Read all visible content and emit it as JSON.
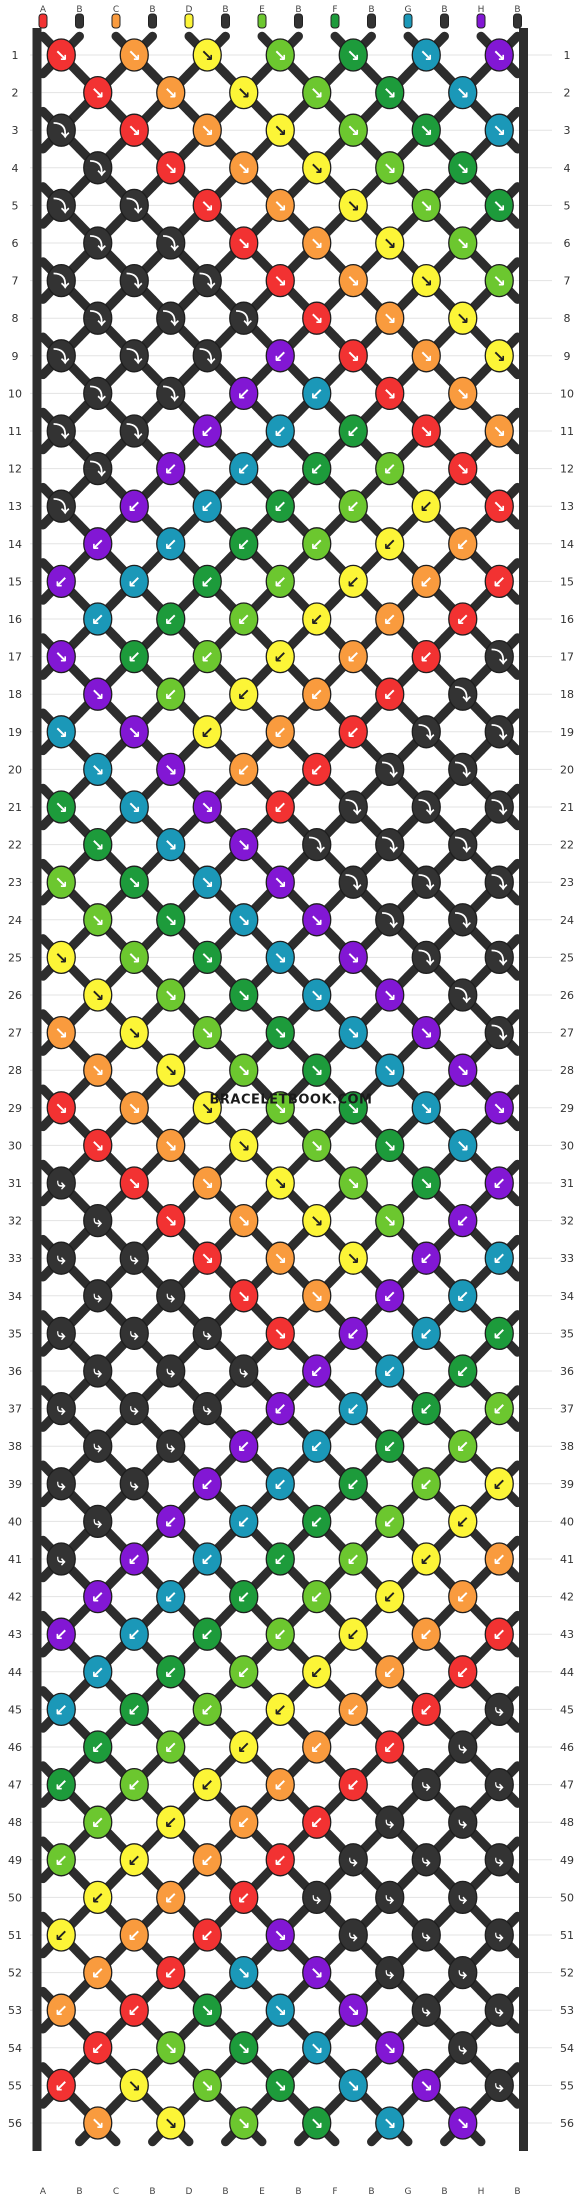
{
  "watermark": "BRACELETBOOK.COM",
  "strand_labels": [
    "A",
    "B",
    "C",
    "B",
    "D",
    "B",
    "E",
    "B",
    "F",
    "B",
    "G",
    "B",
    "H",
    "B"
  ],
  "row_numbers": [
    "1",
    "2",
    "3",
    "4",
    "5",
    "6",
    "7",
    "8",
    "9",
    "10",
    "11",
    "12",
    "13",
    "14",
    "15",
    "16",
    "17",
    "18",
    "19",
    "20",
    "21",
    "22",
    "23",
    "24",
    "25",
    "26",
    "27",
    "28",
    "29",
    "30",
    "31",
    "32",
    "33",
    "34",
    "35",
    "36",
    "37",
    "38",
    "39",
    "40",
    "41",
    "42",
    "43",
    "44",
    "45",
    "46",
    "47",
    "48",
    "49",
    "50",
    "51",
    "52",
    "53",
    "54",
    "55",
    "56"
  ],
  "colors": {
    "A": "#f23232",
    "B": "#333333",
    "C": "#f99b3e",
    "D": "#fcf537",
    "E": "#6cc72f",
    "F": "#1d9b3b",
    "G": "#1b98b8",
    "H": "#8217d4"
  },
  "knot_arrows": {
    "forward": "↘",
    "backward": "↙",
    "forward_backward": "⤵",
    "backward_forward": "⤷"
  }
}
